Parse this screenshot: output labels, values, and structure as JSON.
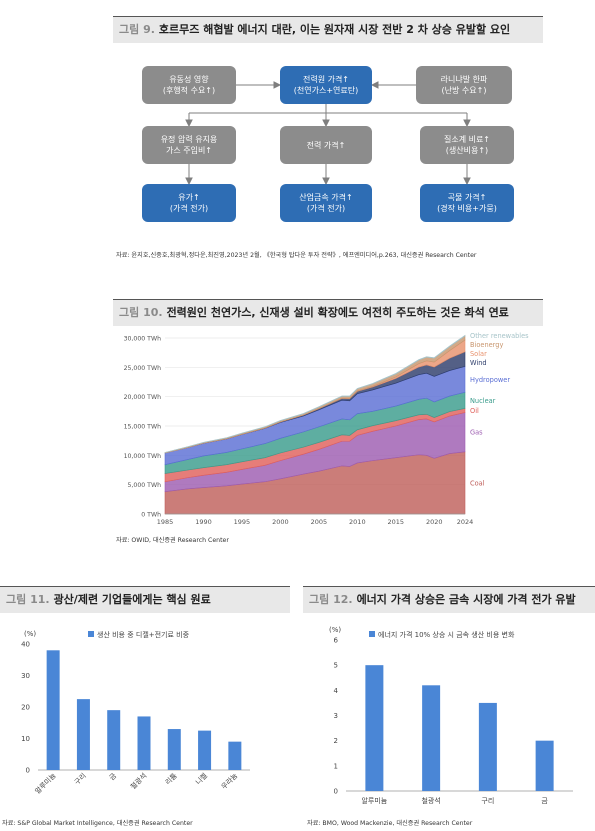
{
  "fig9": {
    "num": "그림 9.",
    "title": "호르무즈 해협발 에너지 대란, 이는 원자재 시장 전반 2 차 상승 유발할 요인",
    "boxes": [
      {
        "text": "유동성 영향\n(후행적 수요↑)",
        "color": "gray"
      },
      {
        "text": "전력원 가격↑\n(천연가스+연료탄)",
        "color": "blue"
      },
      {
        "text": "라니냐발 한파\n(난방 수요↑)",
        "color": "gray"
      },
      {
        "text": "유정 압력 유지용\n가스 주입비↑",
        "color": "gray"
      },
      {
        "text": "전력 가격↑",
        "color": "gray"
      },
      {
        "text": "질소계 비료↑\n(생산비용↑)",
        "color": "gray"
      },
      {
        "text": "유가↑\n(가격 전가)",
        "color": "blue"
      },
      {
        "text": "산업금속 가격↑\n(가격 전가)",
        "color": "blue"
      },
      {
        "text": "곡물 가격↑\n(경작 비용+가뭄)",
        "color": "blue"
      }
    ],
    "source": "자료: 윤지호,신중호,최광혁,정다운,최진영,2023년 2월, 《한국형 탑다운 투자 전략》, 에프엔미디어,p.263, 대신증권 Research Center"
  },
  "fig10": {
    "num": "그림 10.",
    "title": "전력원인 천연가스, 신재생 설비 확장에도 여전히 주도하는 것은 화석 연료",
    "source": "자료: OWID, 대신증권 Research Center"
  },
  "fig11": {
    "num": "그림 11.",
    "title": "광산/제련 기업들에게는 핵심 원료",
    "source": "자료: S&P Global Market Intelligence, 대신증권 Research Center"
  },
  "fig12": {
    "num": "그림 12.",
    "title": "에너지 가격 상승은 금속 시장에 가격 전가 유발",
    "source": "자료: BMO, Wood Mackenzie, 대신증권 Research Center"
  },
  "chart_data": [
    {
      "type": "area",
      "stacked": true,
      "x": [
        1985,
        1988,
        1990,
        1993,
        1995,
        1998,
        2000,
        2003,
        2005,
        2008,
        2009,
        2010,
        2012,
        2015,
        2018,
        2019,
        2020,
        2022,
        2024
      ],
      "ylim": [
        0,
        30000
      ],
      "yticks": [
        0,
        5000,
        10000,
        15000,
        20000,
        25000,
        30000
      ],
      "yticklabels": [
        "0 TWh",
        "5,000 TWh",
        "10,000 TWh",
        "15,000 TWh",
        "20,000 TWh",
        "25,000 TWh",
        "30,000 TWh"
      ],
      "xticks": [
        1985,
        1990,
        1995,
        2000,
        2005,
        2010,
        2015,
        2020,
        2024
      ],
      "legend_placement": "right",
      "series": [
        {
          "name": "Coal",
          "color": "#c0605c",
          "values": [
            3800,
            4300,
            4500,
            4800,
            5100,
            5500,
            6000,
            6800,
            7300,
            8200,
            8100,
            8700,
            9100,
            9600,
            10100,
            10000,
            9500,
            10300,
            10600
          ]
        },
        {
          "name": "Gas",
          "color": "#9d5db1",
          "values": [
            1700,
            1900,
            2100,
            2300,
            2500,
            2800,
            3100,
            3400,
            3700,
            4200,
            4300,
            4700,
            5000,
            5400,
            6000,
            6200,
            6200,
            6400,
            6700
          ]
        },
        {
          "name": "Oil",
          "color": "#e0605b",
          "values": [
            1400,
            1300,
            1300,
            1300,
            1300,
            1300,
            1300,
            1200,
            1200,
            1100,
            1000,
            950,
            950,
            900,
            800,
            800,
            750,
            750,
            700
          ]
        },
        {
          "name": "Nuclear",
          "color": "#3a9c8c",
          "values": [
            1500,
            1800,
            2000,
            2100,
            2200,
            2400,
            2500,
            2600,
            2650,
            2700,
            2650,
            2750,
            2450,
            2500,
            2650,
            2750,
            2650,
            2650,
            2750
          ]
        },
        {
          "name": "Hydropower",
          "color": "#5b6fd4",
          "values": [
            2000,
            2050,
            2150,
            2300,
            2450,
            2600,
            2700,
            2700,
            2900,
            3200,
            3250,
            3400,
            3650,
            3900,
            4200,
            4250,
            4350,
            4350,
            4400
          ]
        },
        {
          "name": "Wind",
          "color": "#2e3d6b",
          "values": [
            0,
            0,
            10,
            20,
            30,
            50,
            80,
            150,
            200,
            300,
            350,
            400,
            500,
            800,
            1300,
            1400,
            1600,
            2100,
            2500
          ]
        },
        {
          "name": "Solar",
          "color": "#e8926e",
          "values": [
            0,
            0,
            0,
            0,
            0,
            0,
            0,
            0,
            10,
            30,
            50,
            60,
            100,
            250,
            580,
            700,
            850,
            1300,
            2000
          ]
        },
        {
          "name": "Bioenergy",
          "color": "#c8966e",
          "values": [
            70,
            100,
            120,
            140,
            160,
            180,
            200,
            230,
            260,
            320,
            340,
            370,
            430,
            520,
            600,
            620,
            650,
            680,
            700
          ]
        },
        {
          "name": "Other renewables",
          "color": "#a7c4c9",
          "values": [
            30,
            40,
            45,
            50,
            55,
            60,
            70,
            70,
            80,
            80,
            80,
            90,
            90,
            100,
            100,
            100,
            100,
            100,
            100
          ]
        }
      ]
    },
    {
      "type": "bar",
      "title": "생산 비용 중 디젤+전기료 비중",
      "ylabel": "(%)",
      "categories": [
        "알루미늄",
        "구리",
        "금",
        "철광석",
        "리튬",
        "니켈",
        "우라늄"
      ],
      "values": [
        38,
        22.5,
        19,
        17,
        13,
        12.5,
        9
      ],
      "ylim": [
        0,
        40
      ],
      "yticks": [
        0,
        10,
        20,
        30,
        40
      ],
      "color": "#4a86d6"
    },
    {
      "type": "bar",
      "title": "에너지 가격 10% 상승 시 금속 생산 비용 변화",
      "ylabel": "(%)",
      "categories": [
        "알루미늄",
        "철광석",
        "구리",
        "금"
      ],
      "values": [
        5,
        4.2,
        3.5,
        2
      ],
      "ylim": [
        0,
        6
      ],
      "yticks": [
        0,
        1,
        2,
        3,
        4,
        5,
        6
      ],
      "color": "#4a86d6"
    }
  ]
}
